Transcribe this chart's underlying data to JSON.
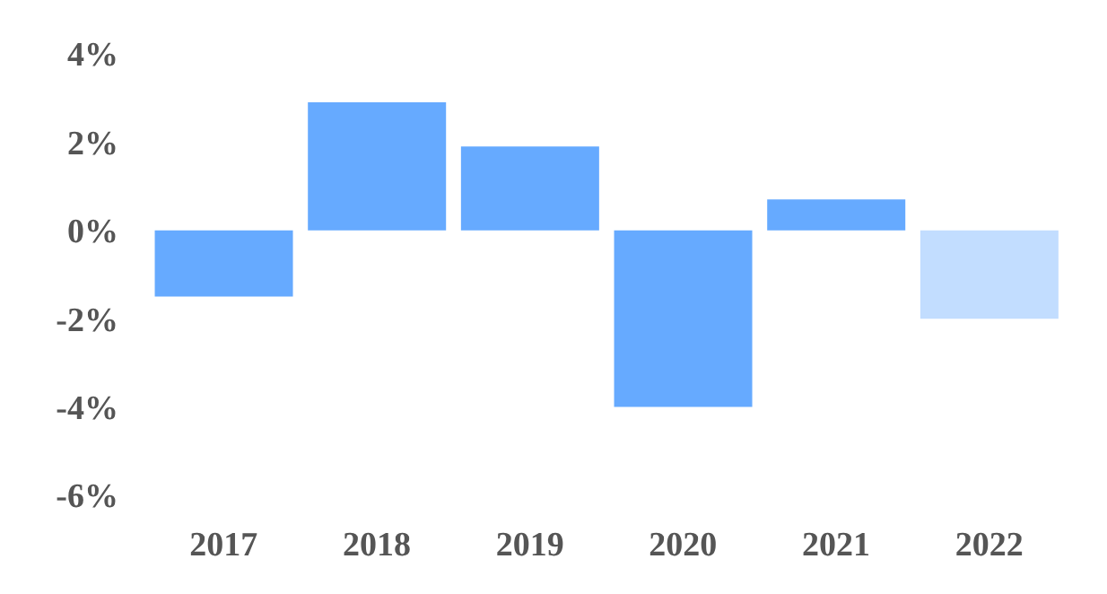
{
  "chart_data": {
    "type": "bar",
    "categories": [
      "2017",
      "2018",
      "2019",
      "2020",
      "2021",
      "2022"
    ],
    "values": [
      -1.5,
      2.9,
      1.9,
      -4.0,
      0.7,
      -2.0
    ],
    "colors": [
      "#66aaff",
      "#66aaff",
      "#66aaff",
      "#66aaff",
      "#66aaff",
      "#c2ddff"
    ],
    "ylim": [
      -6,
      4
    ],
    "yticks": [
      {
        "value": -6,
        "label": "-6%"
      },
      {
        "value": -4,
        "label": "-4%"
      },
      {
        "value": -2,
        "label": "-2%"
      },
      {
        "value": 0,
        "label": "0%"
      },
      {
        "value": 2,
        "label": "2%"
      },
      {
        "value": 4,
        "label": "4%"
      }
    ],
    "grid": false,
    "legend": false
  }
}
